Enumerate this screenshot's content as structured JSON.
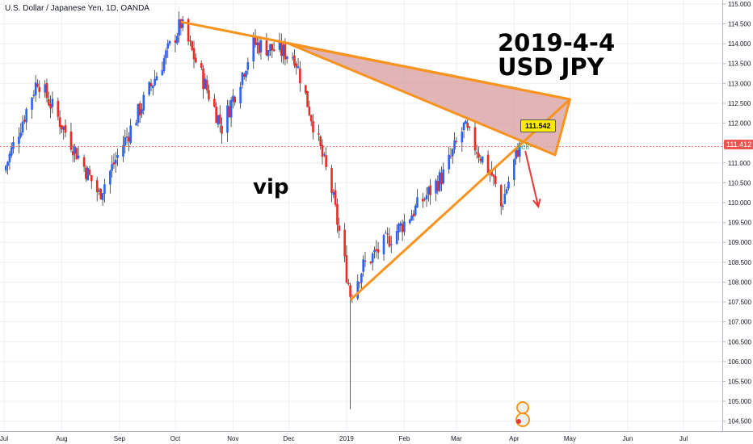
{
  "chart_title": "U.S. Dollar / Japanese Yen, 1D, OANDA",
  "annotations": {
    "date": "2019-4-4",
    "pair": "USD JPY",
    "vip": "vip",
    "price_badge": "111.542",
    "sell": "sell",
    "last_price": "111.412"
  },
  "colors": {
    "bull": "#2962ff",
    "bear": "#ef2a24",
    "trendline": "#f7931e",
    "wedge_fill": "#d9a3a3",
    "arrow": "#e53935",
    "last_price_line": "#ef5350",
    "grid": "#eef0f3"
  },
  "chart_data": {
    "type": "candlestick",
    "instrument": "USD/JPY",
    "timeframe": "1D",
    "source": "OANDA",
    "y_axis": {
      "ylim": [
        104.25,
        115.1
      ],
      "ticks": [
        104.5,
        105.0,
        105.5,
        106.0,
        106.5,
        107.0,
        107.5,
        108.0,
        108.5,
        109.0,
        109.5,
        110.0,
        110.5,
        111.0,
        111.5,
        112.0,
        112.5,
        113.0,
        113.5,
        114.0,
        114.5,
        115.0
      ],
      "tick_labels": [
        "104.500",
        "105.000",
        "105.500",
        "106.000",
        "106.500",
        "107.000",
        "107.500",
        "108.000",
        "108.500",
        "109.000",
        "109.500",
        "110.000",
        "110.500",
        "111.000",
        "111.500",
        "112.000",
        "112.500",
        "113.000",
        "113.500",
        "114.000",
        "114.500",
        "115.000"
      ]
    },
    "x_axis": {
      "tick_dates": [
        "2018-07-01",
        "2018-08-01",
        "2018-09-01",
        "2018-10-01",
        "2018-11-01",
        "2018-12-01",
        "2019-01-01",
        "2019-02-01",
        "2019-03-01",
        "2019-04-01",
        "2019-05-01",
        "2019-06-01",
        "2019-07-01"
      ],
      "tick_labels": [
        "Jul",
        "Aug",
        "Sep",
        "Oct",
        "Nov",
        "Dec",
        "2019",
        "Feb",
        "Mar",
        "Apr",
        "May",
        "Jun",
        "Jul"
      ]
    },
    "key_levels": [
      {
        "date": "2018-07-01",
        "close": 110.8
      },
      {
        "date": "2018-07-19",
        "close": 113.1
      },
      {
        "date": "2018-08-21",
        "close": 110.2
      },
      {
        "date": "2018-10-04",
        "close": 114.5
      },
      {
        "date": "2018-10-26",
        "close": 111.9
      },
      {
        "date": "2018-11-12",
        "close": 114.0
      },
      {
        "date": "2018-12-04",
        "close": 113.7
      },
      {
        "date": "2018-12-24",
        "close": 110.3
      },
      {
        "date": "2019-01-03",
        "close": 107.7
      },
      {
        "date": "2019-01-10",
        "close": 108.4
      },
      {
        "date": "2019-02-01",
        "close": 109.5
      },
      {
        "date": "2019-02-22",
        "close": 110.7
      },
      {
        "date": "2019-03-05",
        "close": 111.9
      },
      {
        "date": "2019-03-20",
        "close": 110.7
      },
      {
        "date": "2019-03-25",
        "close": 109.9
      },
      {
        "date": "2019-04-04",
        "close": 111.5
      }
    ],
    "extremes": [
      {
        "date": "2018-10-04",
        "high": 114.55
      },
      {
        "date": "2019-01-03",
        "low": 104.8
      }
    ],
    "drawings": {
      "upper_trendline": [
        {
          "date": "2018-10-04",
          "price": 114.55
        },
        {
          "date": "2019-05-01",
          "price": 112.6
        }
      ],
      "lower_trendline": [
        {
          "date": "2019-01-03",
          "price": 107.55
        },
        {
          "date": "2019-05-01",
          "price": 112.6
        }
      ],
      "wedge_triangle": [
        {
          "date": "2018-12-01",
          "price": 114.0
        },
        {
          "date": "2019-05-01",
          "price": 112.6
        },
        {
          "date": "2019-04-23",
          "price": 111.2
        }
      ],
      "forecast_arrow": [
        {
          "date": "2019-04-07",
          "price": 111.3
        },
        {
          "date": "2019-04-14",
          "price": 109.9
        }
      ]
    },
    "last_price": 111.412,
    "grid": true
  }
}
